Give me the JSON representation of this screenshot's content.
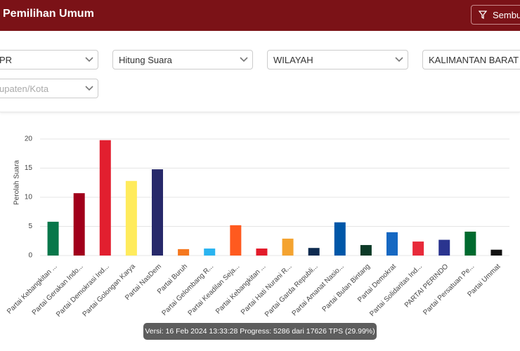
{
  "header": {
    "title": "Pemilihan Umum",
    "button": "Sembu"
  },
  "filters": [
    "PR",
    "Hitung Suara",
    "WILAYAH",
    "KALIMANTAN BARAT",
    "upaten/Kota"
  ],
  "chart_data": {
    "type": "bar",
    "ylabel": "Perolah Suara",
    "categories": [
      "Partai Kebangkitan ...",
      "Partai Gerakan Indo...",
      "Partai Demokrasi Ind...",
      "Partai Golongan Karya",
      "Partai NasDem",
      "Partai Buruh",
      "Partai Gelombang R...",
      "Partai Keadilan Seja...",
      "Partai Kebangkitan ...",
      "Partai Hati Nurani R...",
      "Partai Garda Republi...",
      "Partai Amanat Nasio...",
      "Partai Bulan Bintang",
      "Partai Demokrat",
      "Partai Solidaritas Ind...",
      "PARTAI PERINDO",
      "Partai Persatuan Pe...",
      "Partai Ummat"
    ],
    "values": [
      5.8,
      10.7,
      19.8,
      12.8,
      14.8,
      1.1,
      1.2,
      5.2,
      1.2,
      2.9,
      1.3,
      5.7,
      1.8,
      4.0,
      2.4,
      2.7,
      4.1,
      1.0
    ],
    "colors": [
      "#08774a",
      "#a1001b",
      "#e21f2f",
      "#ffeb5c",
      "#27296a",
      "#f5781f",
      "#2ab4f0",
      "#ff5a1f",
      "#e31b2a",
      "#f4a330",
      "#0e2b50",
      "#0057a8",
      "#0c3a27",
      "#1668c2",
      "#e82a3a",
      "#2a348f",
      "#006a2e",
      "#111111"
    ],
    "ylim": [
      0,
      20
    ],
    "yticks": [
      0,
      5,
      10,
      15,
      20
    ],
    "grid": true
  },
  "footer": "Versi: 16 Feb 2024 13:33:28 Progress: 5286 dari 17626 TPS (29.99%)"
}
